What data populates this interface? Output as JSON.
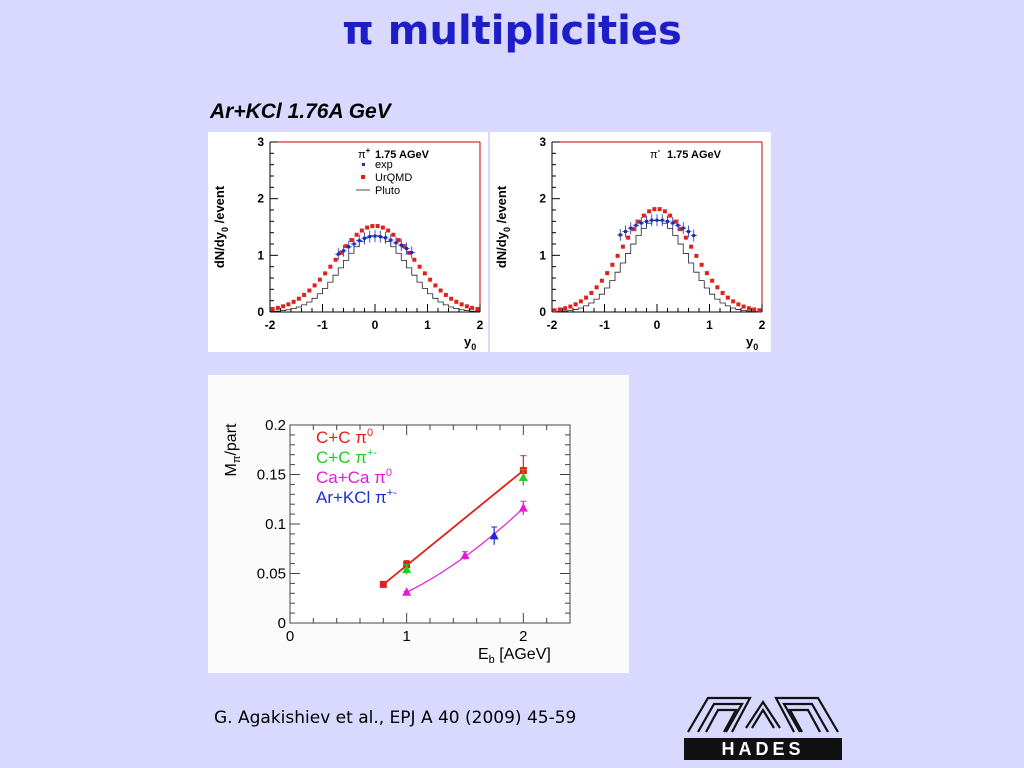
{
  "title": "π multiplicities",
  "subtitle": "Ar+KCl 1.76A GeV",
  "citation": "G. Agakishiev et al., EPJ A 40 (2009) 45-59",
  "logo_text": "HADES",
  "colors": {
    "background": "#d9d9ff",
    "title": "#1e1ec8",
    "exp": "#1a2fb0",
    "urqmd": "#e0201a",
    "pluto": "#222222"
  },
  "chart_data": [
    {
      "type": "scatter",
      "panel": "pi-plus rapidity",
      "xlabel": "y",
      "xlabel_sub": "0",
      "ylabel": "dN/dy",
      "ylabel_sub": "0",
      "ylabel_tail": " /event",
      "xlim": [
        -2,
        2
      ],
      "ylim": [
        0,
        3
      ],
      "xticks": [
        "-2",
        "-1",
        "0",
        "1",
        "2"
      ],
      "yticks": [
        "0",
        "1",
        "2",
        "3"
      ],
      "legend": {
        "particle": "π",
        "particle_sup": "+",
        "energy": "1.75 AGeV",
        "entries": [
          "exp",
          "UrQMD",
          "Pluto"
        ]
      },
      "series": [
        {
          "name": "UrQMD",
          "amp": 1.52,
          "sigma": 0.75
        },
        {
          "name": "Pluto",
          "amp": 1.35,
          "sigma": 0.62
        },
        {
          "name": "exp",
          "x": [
            -0.7,
            -0.6,
            -0.5,
            -0.4,
            -0.3,
            -0.2,
            -0.1,
            0.0,
            0.1,
            0.2,
            0.3,
            0.4,
            0.5,
            0.6,
            0.7
          ],
          "y": [
            1.02,
            1.08,
            1.15,
            1.2,
            1.26,
            1.3,
            1.33,
            1.34,
            1.33,
            1.31,
            1.27,
            1.22,
            1.18,
            1.12,
            1.05
          ]
        }
      ]
    },
    {
      "type": "scatter",
      "panel": "pi-minus rapidity",
      "xlabel": "y",
      "xlabel_sub": "0",
      "ylabel": "dN/dy",
      "ylabel_sub": "0",
      "ylabel_tail": " /event",
      "xlim": [
        -2,
        2
      ],
      "ylim": [
        0,
        3
      ],
      "xticks": [
        "-2",
        "-1",
        "0",
        "1",
        "2"
      ],
      "yticks": [
        "0",
        "1",
        "2",
        "3"
      ],
      "legend": {
        "particle": "π",
        "particle_sup": "-",
        "energy": "1.75 AGeV"
      },
      "series": [
        {
          "name": "UrQMD",
          "amp": 1.82,
          "sigma": 0.68
        },
        {
          "name": "Pluto",
          "amp": 1.62,
          "sigma": 0.58
        },
        {
          "name": "exp",
          "x": [
            -0.7,
            -0.6,
            -0.5,
            -0.4,
            -0.3,
            -0.2,
            -0.1,
            0.0,
            0.1,
            0.2,
            0.3,
            0.4,
            0.5,
            0.6,
            0.7
          ],
          "y": [
            1.36,
            1.42,
            1.48,
            1.53,
            1.57,
            1.6,
            1.62,
            1.62,
            1.62,
            1.6,
            1.57,
            1.53,
            1.48,
            1.42,
            1.35
          ]
        }
      ]
    },
    {
      "type": "scatter",
      "panel": "excitation function",
      "xlabel": "E",
      "xlabel_sub": "b",
      "xlabel_tail": "  [AGeV]",
      "ylabel": "M",
      "ylabel_sub": "π",
      "ylabel_tail": "/part",
      "xlim": [
        0,
        2.4
      ],
      "ylim": [
        0,
        0.2
      ],
      "xticks": [
        "0",
        "1",
        "2"
      ],
      "yticks": [
        "0",
        "0.05",
        "0.1",
        "0.15",
        "0.2"
      ],
      "series": [
        {
          "name": "C+C π0",
          "label": "C+C ",
          "sup": "0",
          "color": "#e0201a",
          "marker": "square",
          "x": [
            0.8,
            1.0,
            2.0
          ],
          "y": [
            0.039,
            0.059,
            0.154
          ],
          "err": [
            0.002,
            0.004,
            0.015
          ],
          "line": "straight"
        },
        {
          "name": "C+C π+-",
          "label": "C+C ",
          "sup": "+-",
          "color": "#22cc22",
          "marker": "triangle",
          "x": [
            1.0,
            2.0
          ],
          "y": [
            0.054,
            0.147
          ],
          "err": [
            0.005,
            0.008
          ]
        },
        {
          "name": "Ca+Ca π0",
          "label": "Ca+Ca ",
          "sup": "0",
          "color": "#e81ad8",
          "marker": "triangle",
          "x": [
            1.0,
            1.5,
            2.0
          ],
          "y": [
            0.031,
            0.068,
            0.116
          ],
          "err": [
            0.001,
            0.004,
            0.007
          ],
          "line": "curve"
        },
        {
          "name": "Ar+KCl π+-",
          "label": "Ar+KCl ",
          "sup": "+-",
          "color": "#1a2fd0",
          "marker": "triangle",
          "x": [
            1.75
          ],
          "y": [
            0.088
          ],
          "err": [
            0.009
          ]
        }
      ]
    }
  ]
}
